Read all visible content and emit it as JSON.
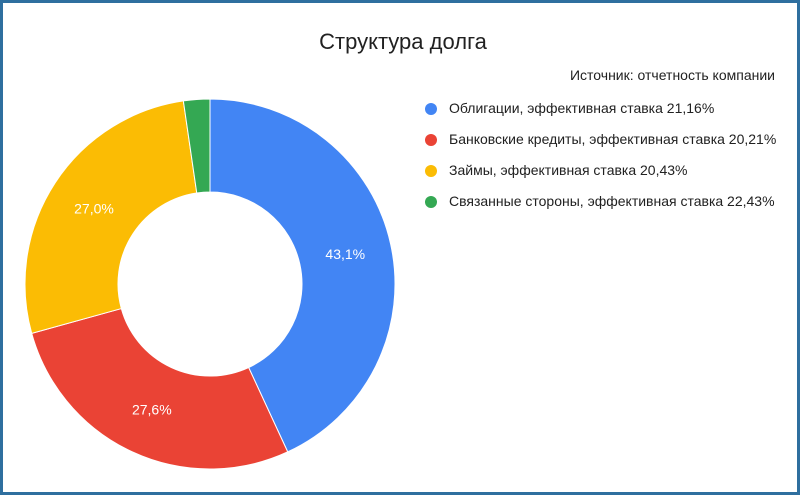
{
  "chart_data": {
    "type": "pie",
    "title": "Структура долга",
    "subtitle": "Источник: отчетность компании",
    "donut": true,
    "legend_position": "right",
    "series": [
      {
        "name": "Облигации, эффективная ставка 21,16%",
        "value": 43.1,
        "label": "43,1%",
        "color": "#4285f4"
      },
      {
        "name": "Банковские кредиты, эффективная ставка 20,21%",
        "value": 27.6,
        "label": "27,6%",
        "color": "#ea4335"
      },
      {
        "name": "Займы, эффективная ставка 20,43%",
        "value": 27.0,
        "label": "27,0%",
        "color": "#fbbc04"
      },
      {
        "name": "Связанные стороны, эффективная ставка 22,43%",
        "value": 2.3,
        "label": "",
        "color": "#34a853"
      }
    ]
  }
}
